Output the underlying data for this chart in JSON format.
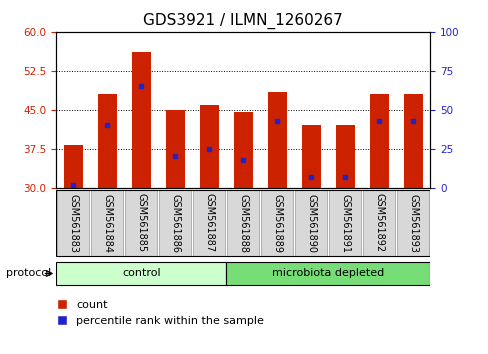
{
  "title": "GDS3921 / ILMN_1260267",
  "samples": [
    "GSM561883",
    "GSM561884",
    "GSM561885",
    "GSM561886",
    "GSM561887",
    "GSM561888",
    "GSM561889",
    "GSM561890",
    "GSM561891",
    "GSM561892",
    "GSM561893"
  ],
  "bar_tops": [
    38.2,
    48.0,
    56.2,
    45.0,
    46.0,
    44.5,
    48.5,
    42.0,
    42.0,
    48.0,
    48.0
  ],
  "bar_bottom": 30,
  "percentile_values": [
    1.5,
    40.0,
    65.0,
    20.0,
    25.0,
    18.0,
    43.0,
    7.0,
    7.0,
    43.0,
    43.0
  ],
  "groups": [
    {
      "label": "control",
      "start": 0,
      "end": 5,
      "color": "#ccffcc"
    },
    {
      "label": "microbiota depleted",
      "start": 5,
      "end": 11,
      "color": "#77dd77"
    }
  ],
  "ylim_left": [
    30,
    60
  ],
  "ylim_right": [
    0,
    100
  ],
  "yticks_left": [
    30,
    37.5,
    45,
    52.5,
    60
  ],
  "yticks_right": [
    0,
    25,
    50,
    75,
    100
  ],
  "bar_color": "#cc2200",
  "dot_color": "#2222cc",
  "bar_width": 0.55,
  "bg_color": "#ffffff",
  "plot_bg": "#ffffff",
  "left_axis_color": "#cc2200",
  "right_axis_color": "#2222cc",
  "title_fontsize": 11,
  "tick_fontsize": 7.5,
  "label_fontsize": 8
}
